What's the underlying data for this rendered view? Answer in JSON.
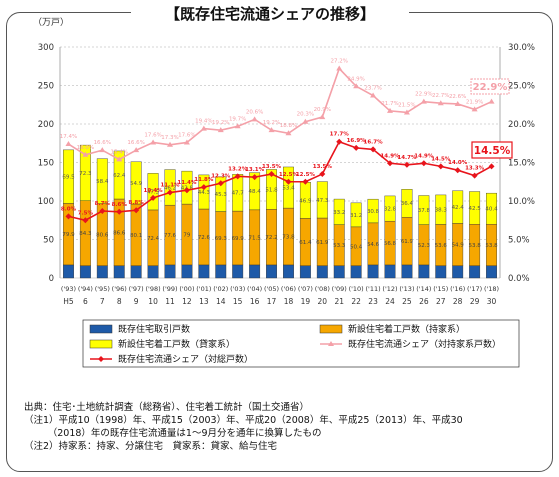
{
  "title": "【既存住宅流通シェアの推移】",
  "chart_data": {
    "type": "bar",
    "left_unit": "（万戸）",
    "y_left": {
      "min": 0,
      "max": 300,
      "ticks": [
        0,
        50,
        100,
        150,
        200,
        250,
        300
      ]
    },
    "y_right": {
      "min": 0,
      "max": 30,
      "ticks": [
        "0.0%",
        "5.0%",
        "10.0%",
        "15.0%",
        "20.0%",
        "25.0%",
        "30.0%"
      ]
    },
    "x_labels_top": [
      "('93)",
      "('94)",
      "('95)",
      "('96)",
      "('97)",
      "('98)",
      "('99)",
      "('00)",
      "('01)",
      "('02)",
      "('03)",
      "('04)",
      "('05)",
      "('06)",
      "('07)",
      "('08)",
      "('09)",
      "('10)",
      "('11)",
      "('12)",
      "('13)",
      "('14)",
      "('15)",
      "('16)",
      "('17)",
      "('18)"
    ],
    "x_labels_bottom": [
      "H5",
      "6",
      "7",
      "8",
      "9",
      "10",
      "11",
      "12",
      "13",
      "14",
      "15",
      "16",
      "17",
      "18",
      "19",
      "20",
      "21",
      "22",
      "23",
      "24",
      "25",
      "26",
      "27",
      "28",
      "29",
      "30"
    ],
    "series": [
      {
        "name": "既存住宅取引戸数",
        "color": "#1e5aa8",
        "values": [
          17,
          16,
          16,
          16,
          16,
          16,
          17,
          17,
          17,
          17,
          17,
          17,
          17,
          17,
          16,
          16,
          16,
          16,
          17,
          17,
          17,
          17,
          16,
          16,
          16,
          16
        ]
      },
      {
        "name": "新設住宅着工戸数（持家系）",
        "color": "#f6a700",
        "values": [
          79.9,
          84.3,
          80.6,
          86.6,
          80.1,
          72.4,
          77.6,
          79.0,
          72.6,
          69.3,
          69.9,
          71.5,
          72.2,
          73.8,
          61.4,
          61.9,
          53.3,
          50.4,
          54.6,
          56.8,
          61.9,
          52.3,
          53.6,
          54.9,
          53.8,
          53.8
        ]
      },
      {
        "name": "新設住宅着工戸数（貸家系）",
        "color": "#ffff00",
        "values": [
          69.5,
          72.3,
          58.4,
          62.4,
          54.9,
          47.5,
          46.2,
          42.8,
          44.3,
          45.3,
          47.7,
          48.4,
          51.8,
          53.4,
          46.9,
          47.3,
          33.2,
          31.2,
          30.8,
          32.8,
          36.4,
          37.8,
          38.3,
          42.4,
          42.5,
          40.4
        ]
      },
      {
        "name": "既存住宅流通シェア（対持家系戸数）",
        "color": "#f4a0a8",
        "values": [
          17.4,
          16.0,
          16.6,
          15.4,
          16.6,
          17.6,
          17.3,
          17.6,
          19.4,
          19.2,
          19.7,
          20.6,
          19.2,
          18.8,
          20.3,
          20.9,
          27.2,
          24.9,
          23.7,
          21.7,
          21.5,
          22.9,
          22.7,
          22.6,
          21.9,
          22.9
        ],
        "labels": [
          "17.4%",
          "16.0%",
          "16.6%",
          "15.4%",
          "16.6%",
          "17.6%",
          "17.3%",
          "17.6%",
          "19.4%",
          "19.2%",
          "19.7%",
          "20.6%",
          "19.2%",
          "18.8%",
          "20.3%",
          "20.9%",
          "27.2%",
          "24.9%",
          "23.7%",
          "21.7%",
          "21.5%",
          "22.9%",
          "22.7%",
          "22.6%",
          "21.9%",
          "22.9%"
        ]
      },
      {
        "name": "既存住宅流通シェア（対総戸数）",
        "color": "#e8141c",
        "values": [
          8.0,
          7.5,
          8.7,
          8.6,
          8.8,
          10.4,
          11.1,
          11.4,
          11.8,
          12.3,
          13.2,
          13.1,
          13.5,
          12.5,
          12.5,
          13.5,
          17.7,
          16.9,
          16.7,
          14.9,
          14.7,
          14.9,
          14.5,
          14.0,
          13.3,
          14.5
        ],
        "labels": [
          "8.0%",
          "7.5%",
          "8.7%",
          "8.6%",
          "8.8%",
          "10.4%",
          "11.1%",
          "11.4%",
          "11.8%",
          "12.3%",
          "13.2%",
          "13.1%",
          "13.5%",
          "12.5%",
          "12.5%",
          "13.5%",
          "17.7%",
          "16.9%",
          "16.7%",
          "14.9%",
          "14.7%",
          "14.9%",
          "14.5%",
          "14.0%",
          "13.3%",
          "14.5%"
        ]
      }
    ]
  },
  "legend": [
    {
      "label": "既存住宅取引戸数",
      "kind": "box",
      "color": "#1e5aa8"
    },
    {
      "label": "新設住宅着工戸数（持家系）",
      "kind": "box",
      "color": "#f6a700"
    },
    {
      "label": "新設住宅着工戸数（貸家系）",
      "kind": "box",
      "color": "#ffff00"
    },
    {
      "label": "既存住宅流通シェア（対持家系戸数）",
      "kind": "line",
      "color": "#f4a0a8"
    },
    {
      "label": "既存住宅流通シェア（対総戸数）",
      "kind": "line",
      "color": "#e8141c"
    }
  ],
  "notes": [
    "出典：住宅･土地統計調査（総務省）、住宅着工統計（国土交通省）",
    "（注1）平成10（1998）年、平成15（2003）年、平成20（2008）年、平成25（2013）年、平成30",
    "　　　（2018）年の既存住宅流通量は1～9月分を通年に換算したもの",
    "（注2）持家系：持家、分譲住宅　貸家系：貸家、給与住宅"
  ]
}
